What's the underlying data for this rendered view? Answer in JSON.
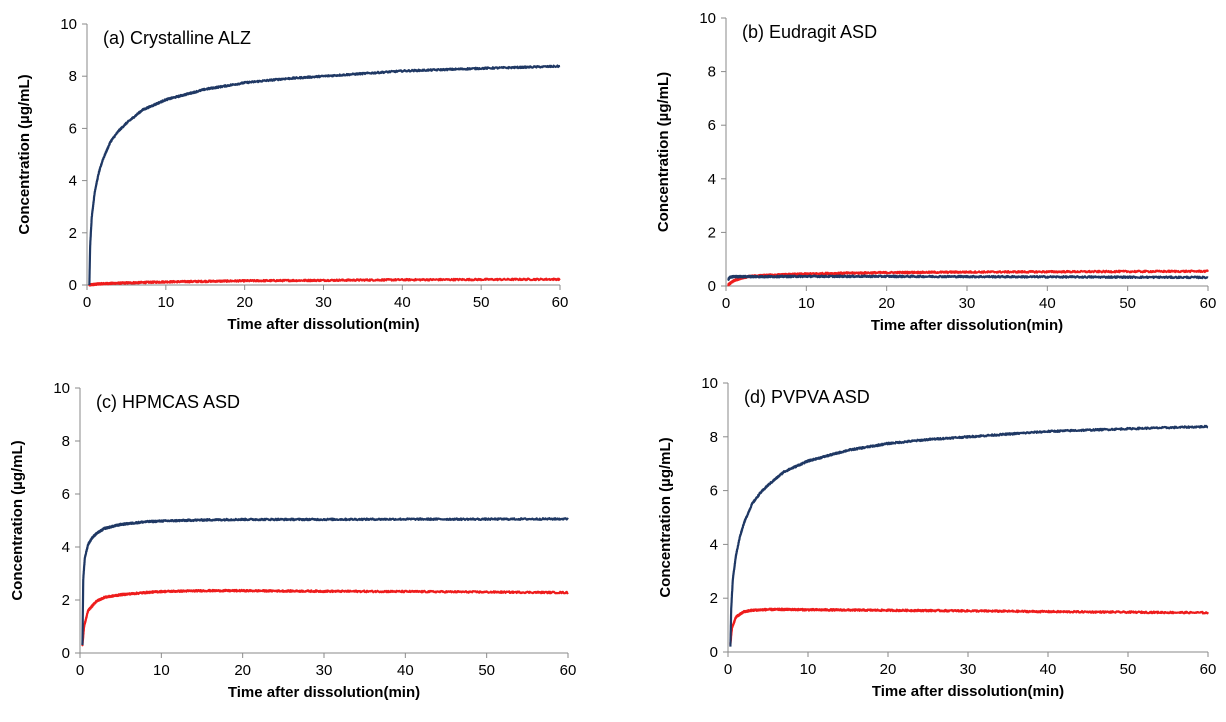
{
  "colors": {
    "blue": "#1f3864",
    "red": "#ee1c1c"
  },
  "chart_data": [
    {
      "type": "line",
      "panel_label": "(a) Crystalline ALZ",
      "xlabel": "Time after dissolution(min)",
      "ylabel": "Concentration (µg/mL)",
      "xlim": [
        0,
        60
      ],
      "ylim": [
        0,
        10
      ],
      "xticks": [
        "0",
        "10",
        "20",
        "30",
        "40",
        "50",
        "60"
      ],
      "yticks": [
        "0",
        "2",
        "4",
        "6",
        "8",
        "10"
      ],
      "grid": false,
      "series": [
        {
          "color": "blue",
          "x": [
            0.3,
            0.4,
            0.6,
            1,
            1.5,
            2,
            3,
            4,
            5,
            7,
            10,
            15,
            20,
            25,
            30,
            40,
            50,
            60
          ],
          "y": [
            0,
            1.5,
            2.6,
            3.6,
            4.3,
            4.8,
            5.5,
            5.9,
            6.2,
            6.7,
            7.1,
            7.5,
            7.75,
            7.9,
            8.0,
            8.2,
            8.3,
            8.38
          ]
        },
        {
          "color": "red",
          "x": [
            0.3,
            1,
            2,
            5,
            10,
            20,
            30,
            40,
            50,
            60
          ],
          "y": [
            0,
            0.03,
            0.05,
            0.08,
            0.12,
            0.16,
            0.18,
            0.2,
            0.21,
            0.22
          ]
        }
      ]
    },
    {
      "type": "line",
      "panel_label": "(b) Eudragit ASD",
      "xlabel": "Time after dissolution(min)",
      "ylabel": "Concentration (µg/mL)",
      "xlim": [
        0,
        60
      ],
      "ylim": [
        0,
        10
      ],
      "xticks": [
        "0",
        "10",
        "20",
        "30",
        "40",
        "50",
        "60"
      ],
      "yticks": [
        "0",
        "2",
        "4",
        "6",
        "8",
        "10"
      ],
      "grid": false,
      "series": [
        {
          "color": "blue",
          "x": [
            0.3,
            0.5,
            1,
            2,
            5,
            10,
            20,
            30,
            40,
            50,
            60
          ],
          "y": [
            0.25,
            0.33,
            0.35,
            0.35,
            0.35,
            0.36,
            0.36,
            0.35,
            0.34,
            0.33,
            0.32
          ]
        },
        {
          "color": "red",
          "x": [
            0.3,
            1,
            2,
            3,
            5,
            8,
            10,
            15,
            20,
            30,
            40,
            50,
            60
          ],
          "y": [
            0.05,
            0.2,
            0.3,
            0.36,
            0.4,
            0.43,
            0.45,
            0.48,
            0.5,
            0.52,
            0.53,
            0.54,
            0.55
          ]
        }
      ]
    },
    {
      "type": "line",
      "panel_label": "(c) HPMCAS ASD",
      "xlabel": "Time after dissolution(min)",
      "ylabel": "Concentration (µg/mL)",
      "xlim": [
        0,
        60
      ],
      "ylim": [
        0,
        10
      ],
      "xticks": [
        "0",
        "10",
        "20",
        "30",
        "40",
        "50",
        "60"
      ],
      "yticks": [
        "0",
        "2",
        "4",
        "6",
        "8",
        "10"
      ],
      "grid": false,
      "series": [
        {
          "color": "blue",
          "x": [
            0.3,
            0.4,
            0.6,
            1,
            1.5,
            2,
            3,
            5,
            8,
            10,
            15,
            20,
            30,
            40,
            50,
            60
          ],
          "y": [
            0.3,
            2.8,
            3.6,
            4.1,
            4.35,
            4.5,
            4.7,
            4.85,
            4.95,
            4.98,
            5.02,
            5.04,
            5.04,
            5.05,
            5.05,
            5.06
          ]
        },
        {
          "color": "red",
          "x": [
            0.3,
            0.5,
            1,
            2,
            3,
            5,
            8,
            10,
            15,
            20,
            30,
            40,
            50,
            60
          ],
          "y": [
            0.3,
            1.0,
            1.6,
            1.95,
            2.1,
            2.2,
            2.28,
            2.32,
            2.35,
            2.35,
            2.33,
            2.32,
            2.3,
            2.28
          ]
        }
      ]
    },
    {
      "type": "line",
      "panel_label": "(d) PVPVA ASD",
      "xlabel": "Time after dissolution(min)",
      "ylabel": "Concentration (µg/mL)",
      "xlim": [
        0,
        60
      ],
      "ylim": [
        0,
        10
      ],
      "xticks": [
        "0",
        "10",
        "20",
        "30",
        "40",
        "50",
        "60"
      ],
      "yticks": [
        "0",
        "2",
        "4",
        "6",
        "8",
        "10"
      ],
      "grid": false,
      "series": [
        {
          "color": "blue",
          "x": [
            0.3,
            0.4,
            0.6,
            1,
            1.5,
            2,
            3,
            4,
            5,
            7,
            10,
            15,
            20,
            25,
            30,
            40,
            50,
            60
          ],
          "y": [
            0.2,
            1.6,
            2.7,
            3.6,
            4.3,
            4.8,
            5.5,
            5.9,
            6.2,
            6.7,
            7.1,
            7.5,
            7.75,
            7.9,
            8.0,
            8.2,
            8.3,
            8.38
          ]
        },
        {
          "color": "red",
          "x": [
            0.3,
            0.5,
            1,
            2,
            3,
            5,
            8,
            10,
            20,
            30,
            40,
            50,
            60
          ],
          "y": [
            0.3,
            0.9,
            1.3,
            1.5,
            1.55,
            1.58,
            1.58,
            1.57,
            1.55,
            1.53,
            1.5,
            1.48,
            1.46
          ]
        }
      ]
    }
  ]
}
